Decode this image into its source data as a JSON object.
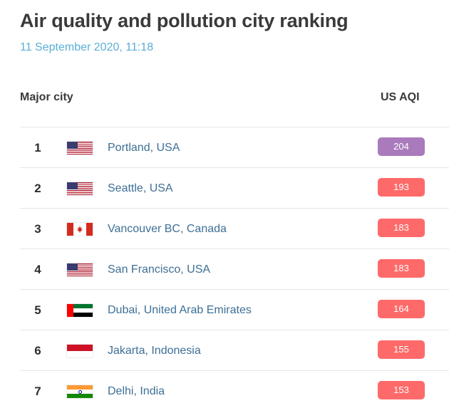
{
  "title": "Air quality and pollution city ranking",
  "timestamp": "11 September 2020, 11:18",
  "columns": {
    "city": "Major city",
    "aqi": "US AQI"
  },
  "colors": {
    "very_unhealthy": "#a97abc",
    "unhealthy": "#fe6a69",
    "city_link": "#3d6f96",
    "timestamp": "#5aaed6"
  },
  "rows": [
    {
      "rank": "1",
      "flag": "usa-flag-icon",
      "city": "Portland, USA",
      "aqi": "204",
      "color": "#a97abc"
    },
    {
      "rank": "2",
      "flag": "usa-flag-icon",
      "city": "Seattle, USA",
      "aqi": "193",
      "color": "#fe6a69"
    },
    {
      "rank": "3",
      "flag": "canada-flag-icon",
      "city": "Vancouver BC, Canada",
      "aqi": "183",
      "color": "#fe6a69"
    },
    {
      "rank": "4",
      "flag": "usa-flag-icon",
      "city": "San Francisco, USA",
      "aqi": "183",
      "color": "#fe6a69"
    },
    {
      "rank": "5",
      "flag": "uae-flag-icon",
      "city": "Dubai, United Arab Emirates",
      "aqi": "164",
      "color": "#fe6a69"
    },
    {
      "rank": "6",
      "flag": "indonesia-flag-icon",
      "city": "Jakarta, Indonesia",
      "aqi": "155",
      "color": "#fe6a69"
    },
    {
      "rank": "7",
      "flag": "india-flag-icon",
      "city": "Delhi, India",
      "aqi": "153",
      "color": "#fe6a69"
    }
  ]
}
